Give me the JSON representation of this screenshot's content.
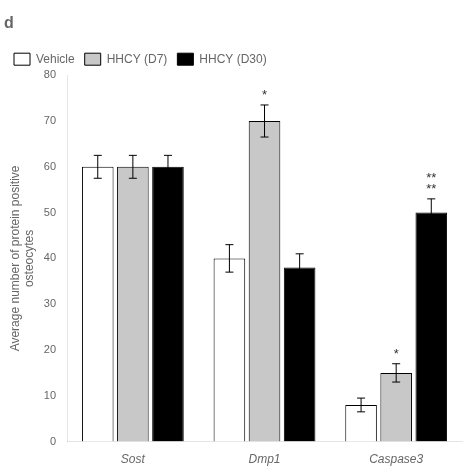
{
  "chart_data": {
    "type": "bar",
    "title": "d",
    "ylabel": "Average number of protein positive\nosteocytes",
    "categories": [
      "Sost",
      "Dmp1",
      "Caspase3"
    ],
    "series": [
      {
        "name": "Vehicle",
        "color": "white",
        "values": [
          60,
          40,
          8
        ],
        "errors": [
          2.5,
          3,
          1.5
        ]
      },
      {
        "name": "HHCY (D7)",
        "color": "#c8c8c8",
        "values": [
          60,
          70,
          15
        ],
        "errors": [
          2.5,
          3.5,
          2
        ]
      },
      {
        "name": "HHCY (D30)",
        "color": "black",
        "values": [
          60,
          38,
          50
        ],
        "errors": [
          2.5,
          3,
          3
        ]
      }
    ],
    "annotations": [
      {
        "category": "Dmp1",
        "series": "HHCY (D7)",
        "text": "*"
      },
      {
        "category": "Caspase3",
        "series": "HHCY (D7)",
        "text": "*"
      },
      {
        "category": "Caspase3",
        "series": "HHCY (D30)",
        "text": "**\n**"
      }
    ],
    "ylim": [
      0,
      80
    ],
    "yticks": [
      0,
      10,
      20,
      30,
      40,
      50,
      60,
      70,
      80
    ],
    "grid": false,
    "legend": "upper left"
  }
}
